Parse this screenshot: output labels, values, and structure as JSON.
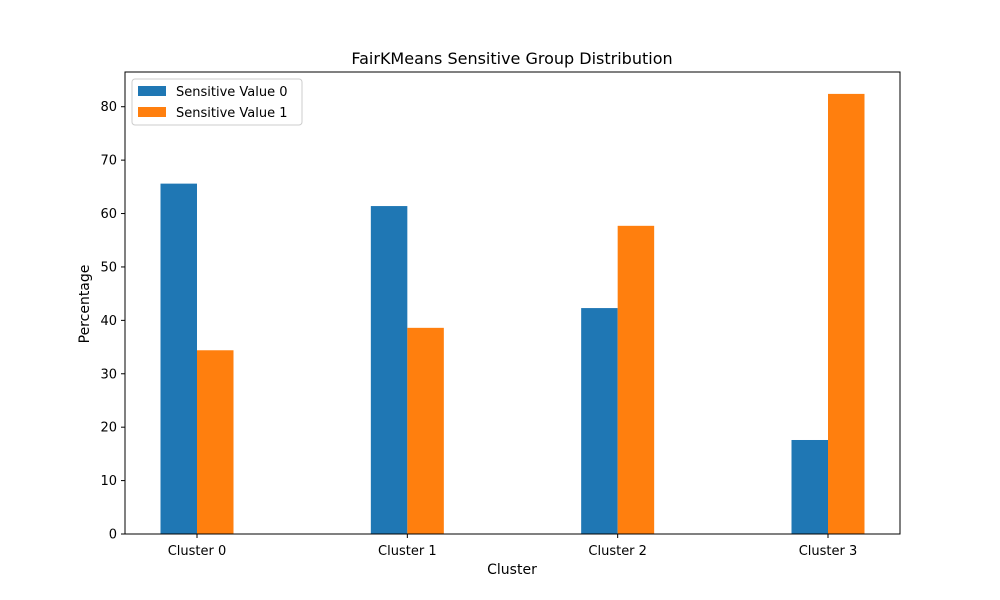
{
  "chart_data": {
    "type": "bar",
    "title": "FairKMeans Sensitive Group Distribution",
    "xlabel": "Cluster",
    "ylabel": "Percentage",
    "categories": [
      "Cluster 0",
      "Cluster 1",
      "Cluster 2",
      "Cluster 3"
    ],
    "series": [
      {
        "name": "Sensitive Value 0",
        "values": [
          65.6,
          61.4,
          42.3,
          17.6
        ],
        "color": "#1f77b4"
      },
      {
        "name": "Sensitive Value 1",
        "values": [
          34.4,
          38.6,
          57.7,
          82.4
        ],
        "color": "#ff7f0e"
      }
    ],
    "ylim": [
      0,
      86.5
    ],
    "yticks": [
      0,
      10,
      20,
      30,
      40,
      50,
      60,
      70,
      80
    ],
    "grid": false,
    "legend_position": "top-left"
  }
}
